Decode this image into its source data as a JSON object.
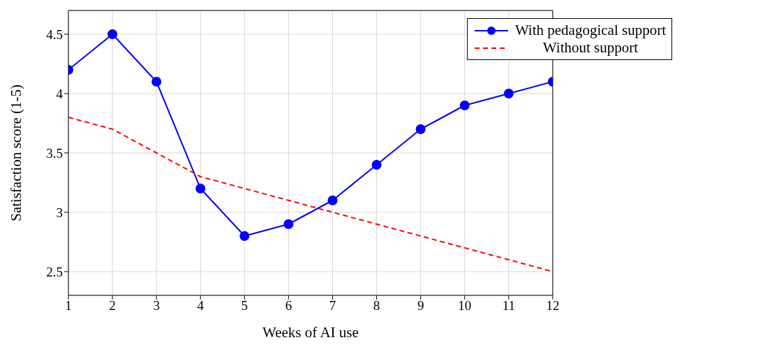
{
  "chart_data": {
    "type": "line",
    "xlabel": "Weeks of AI use",
    "ylabel": "Satisfaction score (1-5)",
    "x": [
      1,
      2,
      3,
      4,
      5,
      6,
      7,
      8,
      9,
      10,
      11,
      12
    ],
    "series": [
      {
        "name": "With pedagogical support",
        "color": "#0000ff",
        "marker": "circle",
        "line_style": "solid",
        "values": [
          4.2,
          4.5,
          4.1,
          3.2,
          2.8,
          2.9,
          3.1,
          3.4,
          3.7,
          3.9,
          4.0,
          4.1
        ]
      },
      {
        "name": "Without support",
        "color": "#ff0000",
        "marker": "none",
        "line_style": "dashed",
        "values": [
          3.8,
          3.7,
          3.5,
          3.3,
          3.2,
          3.1,
          3.0,
          2.9,
          2.8,
          2.7,
          2.6,
          2.5
        ]
      }
    ],
    "xlim": [
      1,
      12
    ],
    "xticks": [
      1,
      2,
      3,
      4,
      5,
      6,
      7,
      8,
      9,
      10,
      11,
      12
    ],
    "ylim": [
      2.3,
      4.7
    ],
    "yticks": [
      2.5,
      3,
      3.5,
      4,
      4.5
    ],
    "grid": true,
    "legend": "top right"
  }
}
